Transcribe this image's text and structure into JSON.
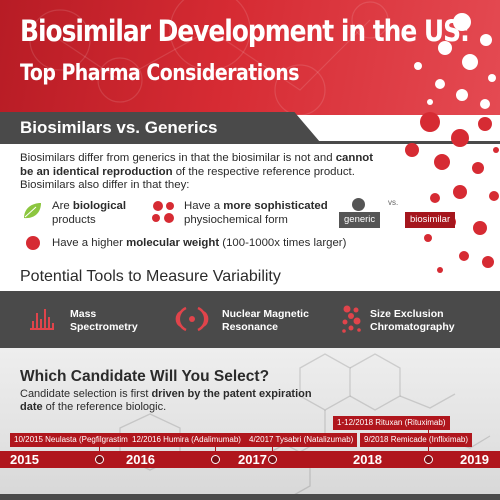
{
  "header": {
    "title": "Biosimilar Development in the US:",
    "subtitle": "Top Pharma Considerations"
  },
  "section": {
    "title": "Biosimilars vs. Generics"
  },
  "intro": {
    "text_a": "Biosimilars differ from generics in that the biosimilar is not and ",
    "text_b": "cannot be an identical reproduction",
    "text_c": " of the respective reference product. Biosimilars also differ in that they:"
  },
  "features": {
    "biological_a": "Are ",
    "biological_b": "biological",
    "biological_c": "products",
    "form_a": "Have a ",
    "form_b": "more sophisticated",
    "form_c": "physiochemical form",
    "weight_a": "Have a higher ",
    "weight_b": "molecular weight",
    "weight_c": " (100-1000x times larger)"
  },
  "comparison": {
    "generic": "generic",
    "vs": "vs.",
    "biosimilar": "biosimilar"
  },
  "tools": {
    "heading": "Potential Tools to Measure Variability",
    "mass_1": "Mass",
    "mass_2": "Spectrometry",
    "nmr_1": "Nuclear Magnetic",
    "nmr_2": "Resonance",
    "sec_1": "Size Exclusion",
    "sec_2": "Chromatography"
  },
  "candidate": {
    "title": "Which Candidate Will You Select?",
    "text_a": "Candidate selection is first ",
    "text_b": "driven by the patent expiration date",
    "text_c": " of the reference biologic."
  },
  "timeline": {
    "events": [
      "10/2015 Neulasta (Pegfilgrastim)",
      "12/2016 Humira (Adalimumab)",
      "4/2017 Tysabri (Natalizumab)",
      "1-12/2018 Rituxan (Rituximab)",
      "9/2018 Remicade (Infliximab)"
    ],
    "years": [
      "2015",
      "2016",
      "2017",
      "2018",
      "2019"
    ]
  },
  "colors": {
    "brand_red": "#d62b33",
    "dark_red": "#b0161d",
    "dark_gray": "#4a4a4a",
    "leaf_green": "#8cc63f"
  },
  "icons": [
    "leaf-icon",
    "cluster-dots-icon",
    "red-dot-icon",
    "mass-spec-icon",
    "nmr-icon",
    "size-exclusion-icon"
  ]
}
